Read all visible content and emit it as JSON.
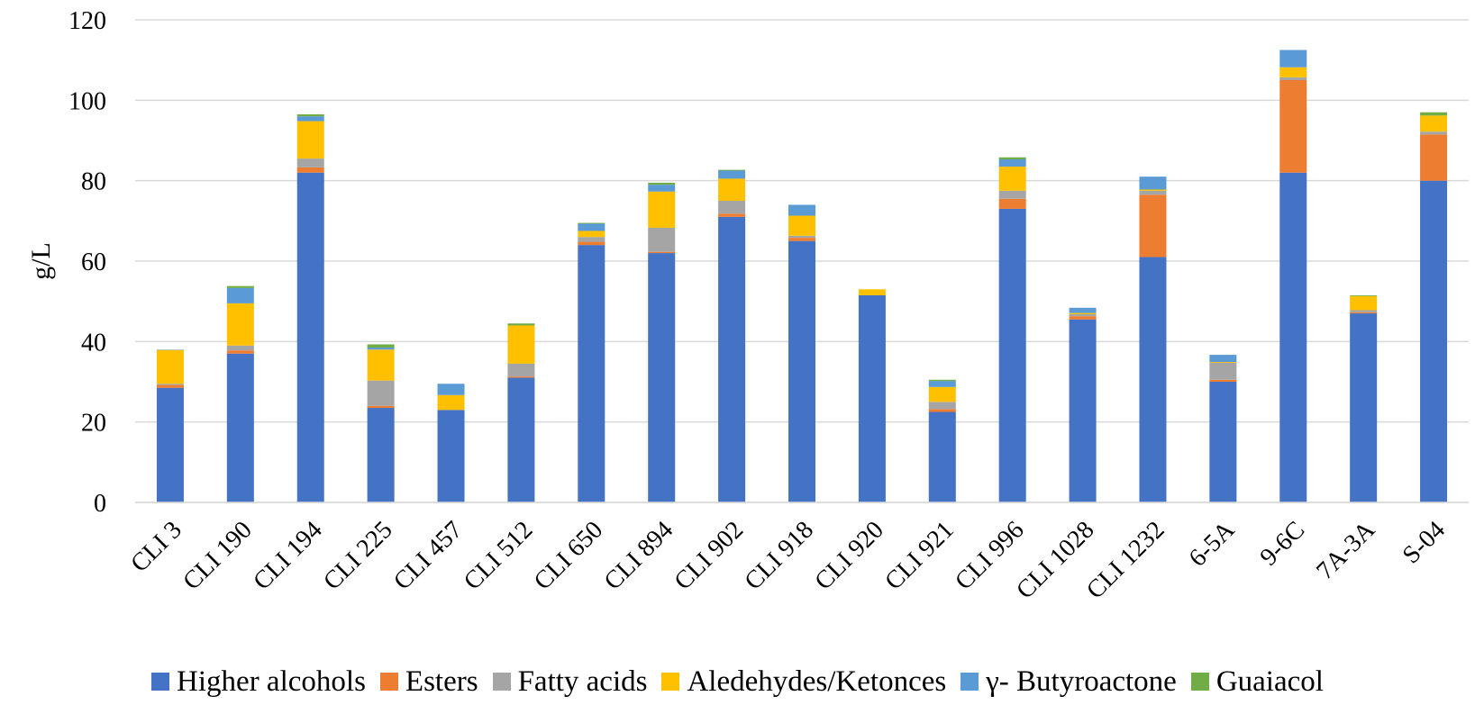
{
  "chart_data": {
    "type": "bar",
    "stacked": true,
    "ylabel": "g/L",
    "xlabel": "",
    "ylim": [
      0,
      120
    ],
    "yticks": [
      "0",
      "20",
      "40",
      "60",
      "80",
      "100",
      "120"
    ],
    "grid": true,
    "legend_position": "bottom",
    "categories": [
      "CLI 3",
      "CLI 190",
      "CLI 194",
      "CLI 225",
      "CLI 457",
      "CLI 512",
      "CLI 650",
      "CLI 894",
      "CLI 902",
      "CLI 918",
      "CLI 920",
      "CLI 921",
      "CLI 996",
      "CLI 1028",
      "CLI 1232",
      "6-5A",
      "9-6C",
      "7A-3A",
      "S-04"
    ],
    "series": [
      {
        "name": "Higher alcohols",
        "color": "#4472C4",
        "values": [
          28.5,
          37,
          82,
          23.5,
          23,
          31,
          64,
          62,
          71,
          65,
          51.5,
          22.5,
          73,
          45.5,
          61,
          30,
          82,
          47,
          80
        ]
      },
      {
        "name": "Esters",
        "color": "#ED7D31",
        "values": [
          0.7,
          0.8,
          1.3,
          0.5,
          0,
          0.3,
          0.8,
          0.3,
          0.8,
          0.8,
          0,
          0.7,
          2.5,
          0.8,
          15.5,
          0.5,
          23,
          0.3,
          11.5
        ]
      },
      {
        "name": "Fatty acids",
        "color": "#A5A5A5",
        "values": [
          0.3,
          1.2,
          2.2,
          6.3,
          0,
          3.2,
          1.2,
          6,
          3.2,
          0.5,
          0,
          1.8,
          2,
          0.5,
          1,
          4.2,
          0.7,
          0.5,
          0.7
        ]
      },
      {
        "name": "Aledehydes/Ketonces",
        "color": "#FFC000",
        "values": [
          8.4,
          10.5,
          9.3,
          7.7,
          3.7,
          9.5,
          1.5,
          9,
          5.5,
          5,
          1.5,
          3.7,
          6,
          0.3,
          0.3,
          0.2,
          2.5,
          3.5,
          4
        ]
      },
      {
        "name": "γ- Butyroactone",
        "color": "#5B9BD5",
        "values": [
          0.1,
          3.8,
          1.2,
          0.5,
          2.8,
          0,
          1.8,
          1.7,
          2,
          2.7,
          0,
          1.5,
          1.8,
          1.3,
          3.2,
          1.8,
          4.3,
          0,
          0
        ]
      },
      {
        "name": "Guaiacol",
        "color": "#70AD47",
        "values": [
          0,
          0.5,
          0.5,
          0.8,
          0,
          0.5,
          0.2,
          0.5,
          0.2,
          0,
          0,
          0.3,
          0.5,
          0,
          0,
          0,
          0,
          0.2,
          0.8
        ]
      }
    ]
  }
}
